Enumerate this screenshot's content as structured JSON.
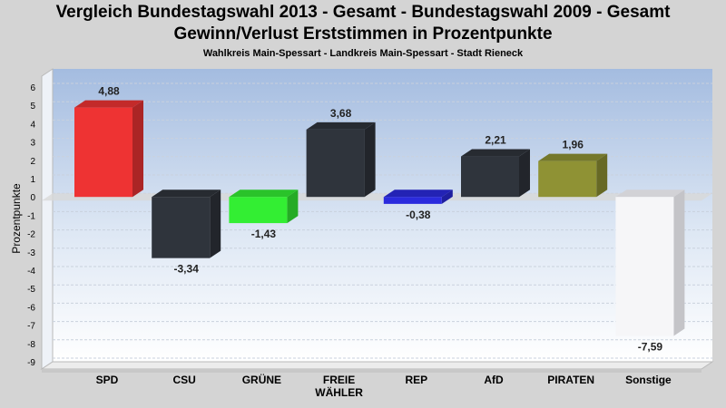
{
  "chart_data": {
    "type": "bar",
    "title": "Vergleich Bundestagswahl 2013 - Gesamt - Bundestagswahl 2009 - Gesamt",
    "title2": "Gewinn/Verlust Erststimmen in Prozentpunkte",
    "subtitle": "Wahlkreis Main-Spessart - Landkreis Main-Spessart - Stadt Rieneck",
    "xlabel": "",
    "ylabel": "Prozentpunkte",
    "ylim": [
      -9,
      6
    ],
    "yticks": [
      "6",
      "5",
      "4",
      "3",
      "2",
      "1",
      "0",
      "-1",
      "-2",
      "-3",
      "-4",
      "-5",
      "-6",
      "-7",
      "-8",
      "-9"
    ],
    "grid": true,
    "categories": [
      [
        "SPD"
      ],
      [
        "CSU"
      ],
      [
        "GRÜNE"
      ],
      [
        "FREIE",
        "WÄHLER"
      ],
      [
        "REP"
      ],
      [
        "AfD"
      ],
      [
        "PIRATEN"
      ],
      [
        "Sonstige"
      ]
    ],
    "values": [
      4.88,
      -3.34,
      -1.43,
      3.68,
      -0.38,
      2.21,
      1.96,
      -7.59
    ],
    "value_labels": [
      "4,88",
      "-3,34",
      "-1,43",
      "3,68",
      "-0,38",
      "2,21",
      "1,96",
      "-7,59"
    ],
    "colors": [
      "#ee3333",
      "#2f343c",
      "#33ee33",
      "#2f343c",
      "#2b2bdd",
      "#2f343c",
      "#8f9234",
      "#f6f6f8"
    ]
  }
}
